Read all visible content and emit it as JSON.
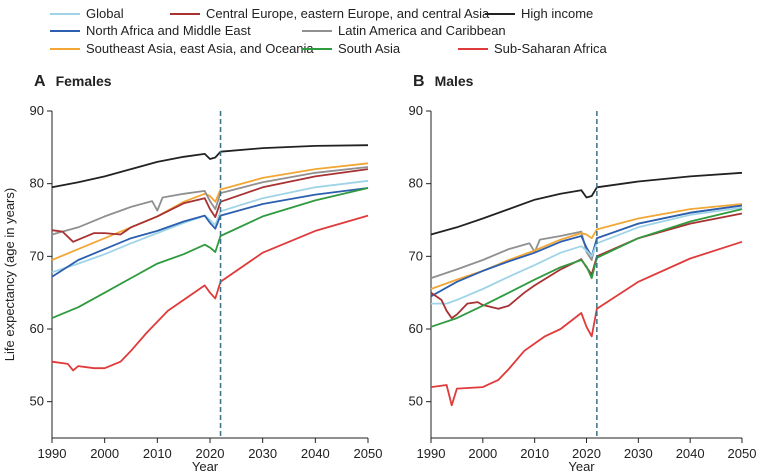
{
  "legend": [
    {
      "name": "Global",
      "color": "#9fd4e8"
    },
    {
      "name": "Central Europe, eastern Europe, and central Asia",
      "color": "#a83232"
    },
    {
      "name": "High income",
      "color": "#222222"
    },
    {
      "name": "North Africa and Middle East",
      "color": "#2c5fb0"
    },
    {
      "name": "Latin America and Caribbean",
      "color": "#909090"
    },
    {
      "name": "Southeast Asia, east Asia, and Oceania",
      "color": "#f2a735"
    },
    {
      "name": "South Asia",
      "color": "#2f9a3e"
    },
    {
      "name": "Sub-Saharan Africa",
      "color": "#e03a3a"
    }
  ],
  "chart_data": [
    {
      "type": "line",
      "panel_letter": "A",
      "title": "Females",
      "xlabel": "Year",
      "ylabel": "Life expectancy (age in years)",
      "xlim": [
        1990,
        2050
      ],
      "ylim": [
        45,
        90
      ],
      "xticks": [
        1990,
        2000,
        2010,
        2020,
        2030,
        2040,
        2050
      ],
      "yticks": [
        50,
        60,
        70,
        80,
        90
      ],
      "reference_line_x": 2022,
      "series": [
        {
          "name": "High income",
          "color": "#222222",
          "points": [
            [
              1990,
              79.5
            ],
            [
              1995,
              80.2
            ],
            [
              2000,
              81
            ],
            [
              2005,
              82
            ],
            [
              2010,
              83
            ],
            [
              2015,
              83.7
            ],
            [
              2019,
              84.1
            ],
            [
              2020,
              83.4
            ],
            [
              2021,
              83.6
            ],
            [
              2022,
              84.4
            ],
            [
              2030,
              84.9
            ],
            [
              2040,
              85.2
            ],
            [
              2050,
              85.3
            ]
          ]
        },
        {
          "name": "Southeast Asia, east Asia, and Oceania",
          "color": "#f2a735",
          "points": [
            [
              1990,
              69.5
            ],
            [
              1995,
              71
            ],
            [
              2000,
              72.5
            ],
            [
              2005,
              74
            ],
            [
              2010,
              75.5
            ],
            [
              2015,
              77.5
            ],
            [
              2019,
              78.6
            ],
            [
              2020,
              78.3
            ],
            [
              2021,
              77.5
            ],
            [
              2022,
              79.2
            ],
            [
              2030,
              80.8
            ],
            [
              2040,
              82
            ],
            [
              2050,
              82.8
            ]
          ]
        },
        {
          "name": "Latin America and Caribbean",
          "color": "#909090",
          "points": [
            [
              1990,
              73
            ],
            [
              1995,
              74
            ],
            [
              2000,
              75.5
            ],
            [
              2005,
              76.8
            ],
            [
              2009,
              77.6
            ],
            [
              2010,
              76.3
            ],
            [
              2011,
              78.1
            ],
            [
              2015,
              78.6
            ],
            [
              2019,
              79
            ],
            [
              2020,
              77.6
            ],
            [
              2021,
              76.5
            ],
            [
              2022,
              78.7
            ],
            [
              2030,
              80.2
            ],
            [
              2040,
              81.5
            ],
            [
              2050,
              82.3
            ]
          ]
        },
        {
          "name": "Central Europe, eastern Europe, and central Asia",
          "color": "#a83232",
          "points": [
            [
              1990,
              73.6
            ],
            [
              1992,
              73.4
            ],
            [
              1994,
              72
            ],
            [
              1996,
              72.6
            ],
            [
              1998,
              73.2
            ],
            [
              2000,
              73.2
            ],
            [
              2003,
              73
            ],
            [
              2005,
              74
            ],
            [
              2010,
              75.5
            ],
            [
              2015,
              77.3
            ],
            [
              2019,
              78
            ],
            [
              2020,
              76.5
            ],
            [
              2021,
              75.4
            ],
            [
              2022,
              77.5
            ],
            [
              2030,
              79.5
            ],
            [
              2040,
              81
            ],
            [
              2050,
              82
            ]
          ]
        },
        {
          "name": "Global",
          "color": "#9fd4e8",
          "points": [
            [
              1990,
              67.8
            ],
            [
              1995,
              69
            ],
            [
              2000,
              70.3
            ],
            [
              2005,
              71.8
            ],
            [
              2010,
              73.2
            ],
            [
              2015,
              74.6
            ],
            [
              2019,
              75.6
            ],
            [
              2020,
              75
            ],
            [
              2021,
              74.3
            ],
            [
              2022,
              76.2
            ],
            [
              2030,
              78
            ],
            [
              2040,
              79.5
            ],
            [
              2050,
              80.4
            ]
          ]
        },
        {
          "name": "North Africa and Middle East",
          "color": "#2c5fb0",
          "points": [
            [
              1990,
              67.2
            ],
            [
              1995,
              69.5
            ],
            [
              2000,
              71
            ],
            [
              2005,
              72.5
            ],
            [
              2010,
              73.5
            ],
            [
              2015,
              74.8
            ],
            [
              2019,
              75.6
            ],
            [
              2020,
              74.6
            ],
            [
              2021,
              73.8
            ],
            [
              2022,
              75.6
            ],
            [
              2030,
              77.2
            ],
            [
              2040,
              78.5
            ],
            [
              2050,
              79.4
            ]
          ]
        },
        {
          "name": "South Asia",
          "color": "#2f9a3e",
          "points": [
            [
              1990,
              61.5
            ],
            [
              1995,
              63
            ],
            [
              2000,
              65
            ],
            [
              2005,
              67
            ],
            [
              2010,
              69
            ],
            [
              2015,
              70.3
            ],
            [
              2019,
              71.6
            ],
            [
              2020,
              71.2
            ],
            [
              2021,
              70.6
            ],
            [
              2022,
              72.8
            ],
            [
              2030,
              75.5
            ],
            [
              2040,
              77.7
            ],
            [
              2050,
              79.4
            ]
          ]
        },
        {
          "name": "Sub-Saharan Africa",
          "color": "#e03a3a",
          "points": [
            [
              1990,
              55.5
            ],
            [
              1993,
              55.2
            ],
            [
              1994,
              54.3
            ],
            [
              1995,
              54.9
            ],
            [
              1998,
              54.6
            ],
            [
              2000,
              54.6
            ],
            [
              2003,
              55.5
            ],
            [
              2005,
              57
            ],
            [
              2008,
              59.5
            ],
            [
              2010,
              61
            ],
            [
              2012,
              62.5
            ],
            [
              2015,
              64
            ],
            [
              2019,
              66
            ],
            [
              2020,
              65
            ],
            [
              2021,
              64.2
            ],
            [
              2022,
              66.5
            ],
            [
              2030,
              70.5
            ],
            [
              2040,
              73.5
            ],
            [
              2050,
              75.6
            ]
          ]
        }
      ]
    },
    {
      "type": "line",
      "panel_letter": "B",
      "title": "Males",
      "xlabel": "Year",
      "ylabel": "",
      "xlim": [
        1990,
        2050
      ],
      "ylim": [
        45,
        90
      ],
      "xticks": [
        1990,
        2000,
        2010,
        2020,
        2030,
        2040,
        2050
      ],
      "yticks": [
        50,
        60,
        70,
        80,
        90
      ],
      "reference_line_x": 2022,
      "series": [
        {
          "name": "High income",
          "color": "#222222",
          "points": [
            [
              1990,
              73
            ],
            [
              1995,
              74
            ],
            [
              2000,
              75.2
            ],
            [
              2005,
              76.5
            ],
            [
              2010,
              77.8
            ],
            [
              2015,
              78.6
            ],
            [
              2019,
              79.1
            ],
            [
              2020,
              78.1
            ],
            [
              2021,
              78.3
            ],
            [
              2022,
              79.5
            ],
            [
              2030,
              80.3
            ],
            [
              2040,
              81
            ],
            [
              2050,
              81.5
            ]
          ]
        },
        {
          "name": "Latin America and Caribbean",
          "color": "#909090",
          "points": [
            [
              1990,
              67
            ],
            [
              1995,
              68.2
            ],
            [
              2000,
              69.5
            ],
            [
              2005,
              71
            ],
            [
              2009,
              71.8
            ],
            [
              2010,
              70.6
            ],
            [
              2011,
              72.3
            ],
            [
              2015,
              72.8
            ],
            [
              2019,
              73.4
            ],
            [
              2020,
              70.6
            ],
            [
              2021,
              69.5
            ],
            [
              2022,
              72.5
            ],
            [
              2030,
              74.5
            ],
            [
              2040,
              76
            ],
            [
              2050,
              77
            ]
          ]
        },
        {
          "name": "Southeast Asia, east Asia, and Oceania",
          "color": "#f2a735",
          "points": [
            [
              1990,
              65.5
            ],
            [
              1995,
              66.8
            ],
            [
              2000,
              68
            ],
            [
              2005,
              69.5
            ],
            [
              2010,
              70.8
            ],
            [
              2015,
              72.3
            ],
            [
              2019,
              73.2
            ],
            [
              2020,
              73
            ],
            [
              2021,
              72.5
            ],
            [
              2022,
              73.7
            ],
            [
              2030,
              75.2
            ],
            [
              2040,
              76.5
            ],
            [
              2050,
              77.2
            ]
          ]
        },
        {
          "name": "North Africa and Middle East",
          "color": "#2c5fb0",
          "points": [
            [
              1990,
              64.5
            ],
            [
              1995,
              66.5
            ],
            [
              2000,
              68
            ],
            [
              2005,
              69.3
            ],
            [
              2010,
              70.5
            ],
            [
              2015,
              72
            ],
            [
              2019,
              72.8
            ],
            [
              2020,
              71.2
            ],
            [
              2021,
              70
            ],
            [
              2022,
              72.5
            ],
            [
              2030,
              74.5
            ],
            [
              2040,
              76
            ],
            [
              2050,
              77
            ]
          ]
        },
        {
          "name": "Global",
          "color": "#9fd4e8",
          "points": [
            [
              1990,
              63.5
            ],
            [
              1993,
              63.5
            ],
            [
              1995,
              64
            ],
            [
              2000,
              65.5
            ],
            [
              2005,
              67.2
            ],
            [
              2010,
              68.8
            ],
            [
              2015,
              70.5
            ],
            [
              2019,
              71.4
            ],
            [
              2020,
              70.8
            ],
            [
              2021,
              70
            ],
            [
              2022,
              71.8
            ],
            [
              2030,
              74
            ],
            [
              2040,
              75.7
            ],
            [
              2050,
              76.7
            ]
          ]
        },
        {
          "name": "Central Europe, eastern Europe, and central Asia",
          "color": "#a83232",
          "points": [
            [
              1990,
              65
            ],
            [
              1992,
              64
            ],
            [
              1993,
              62.5
            ],
            [
              1994,
              61.5
            ],
            [
              1995,
              62
            ],
            [
              1997,
              63.5
            ],
            [
              1999,
              63.7
            ],
            [
              2000,
              63.3
            ],
            [
              2003,
              62.8
            ],
            [
              2005,
              63.2
            ],
            [
              2008,
              65
            ],
            [
              2010,
              66
            ],
            [
              2015,
              68.2
            ],
            [
              2019,
              69.6
            ],
            [
              2020,
              68.5
            ],
            [
              2021,
              67.5
            ],
            [
              2022,
              70
            ],
            [
              2030,
              72.5
            ],
            [
              2040,
              74.5
            ],
            [
              2050,
              75.9
            ]
          ]
        },
        {
          "name": "South Asia",
          "color": "#2f9a3e",
          "points": [
            [
              1990,
              60.3
            ],
            [
              1995,
              61.5
            ],
            [
              2000,
              63.2
            ],
            [
              2005,
              65
            ],
            [
              2010,
              66.8
            ],
            [
              2015,
              68.5
            ],
            [
              2019,
              69.5
            ],
            [
              2020,
              68.6
            ],
            [
              2021,
              67
            ],
            [
              2022,
              69.8
            ],
            [
              2030,
              72.5
            ],
            [
              2040,
              74.8
            ],
            [
              2050,
              76.5
            ]
          ]
        },
        {
          "name": "Sub-Saharan Africa",
          "color": "#e03a3a",
          "points": [
            [
              1990,
              52
            ],
            [
              1993,
              52.3
            ],
            [
              1994,
              49.5
            ],
            [
              1995,
              51.8
            ],
            [
              2000,
              52
            ],
            [
              2003,
              53
            ],
            [
              2005,
              54.5
            ],
            [
              2008,
              57
            ],
            [
              2010,
              58
            ],
            [
              2012,
              59
            ],
            [
              2015,
              60
            ],
            [
              2019,
              62.2
            ],
            [
              2020,
              60.3
            ],
            [
              2021,
              59
            ],
            [
              2022,
              62.8
            ],
            [
              2030,
              66.5
            ],
            [
              2040,
              69.7
            ],
            [
              2050,
              72
            ]
          ]
        }
      ]
    }
  ]
}
